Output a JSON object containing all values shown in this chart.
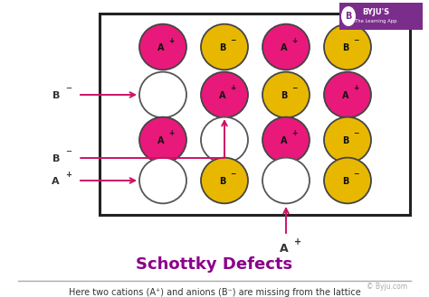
{
  "title": "Schottky Defects",
  "subtitle": "Here two cations (A⁺) and anions (B⁻) are missing from the lattice",
  "title_color": "#8B008B",
  "background": "#ffffff",
  "pink_color": "#E8197A",
  "yellow_color": "#E8B800",
  "empty_edge": "#555555",
  "arrow_color": "#CC1166",
  "ions": [
    {
      "row": 0,
      "col": 0,
      "type": "A"
    },
    {
      "row": 0,
      "col": 1,
      "type": "B"
    },
    {
      "row": 0,
      "col": 2,
      "type": "A"
    },
    {
      "row": 0,
      "col": 3,
      "type": "B"
    },
    {
      "row": 1,
      "col": 0,
      "type": "empty_B"
    },
    {
      "row": 1,
      "col": 1,
      "type": "A"
    },
    {
      "row": 1,
      "col": 2,
      "type": "B"
    },
    {
      "row": 1,
      "col": 3,
      "type": "A"
    },
    {
      "row": 2,
      "col": 0,
      "type": "A"
    },
    {
      "row": 2,
      "col": 1,
      "type": "empty_B"
    },
    {
      "row": 2,
      "col": 2,
      "type": "A"
    },
    {
      "row": 2,
      "col": 3,
      "type": "B"
    },
    {
      "row": 3,
      "col": 0,
      "type": "empty_A"
    },
    {
      "row": 3,
      "col": 1,
      "type": "B"
    },
    {
      "row": 3,
      "col": 2,
      "type": "empty_A"
    },
    {
      "row": 3,
      "col": 3,
      "type": "B"
    }
  ]
}
